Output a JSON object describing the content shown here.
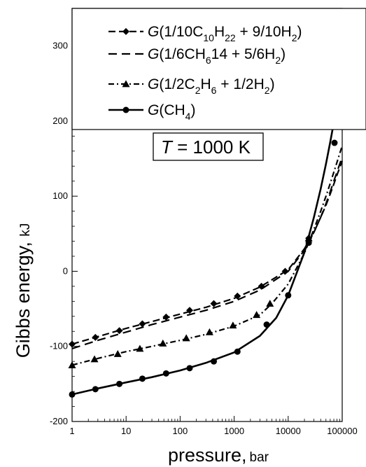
{
  "chart_data": {
    "type": "line",
    "xscale": "log",
    "xlim": [
      1,
      100000
    ],
    "ylim": [
      -200,
      350
    ],
    "grid": false,
    "x_ticks": [
      "1",
      "10",
      "100",
      "1000",
      "10000",
      "100000"
    ],
    "y_ticks": [
      "-200",
      "-100",
      "0",
      "100",
      "200",
      "300"
    ],
    "ylabel": "Gibbs energy,",
    "ylabel_unit": "kJ",
    "xlabel": "pressure,",
    "xlabel_unit": "bar",
    "annotation": {
      "var": "T",
      "rest": " = 1000 K"
    },
    "legend_position": "top-right",
    "series": [
      {
        "legend": {
          "pre": "G",
          "parts": [
            [
              "(1/10C",
              ""
            ],
            [
              "10",
              "sub"
            ],
            [
              "H",
              ""
            ],
            [
              "22",
              "sub"
            ],
            [
              " + 9/10H",
              ""
            ],
            [
              "2",
              "sub"
            ],
            [
              ")",
              ""
            ]
          ]
        },
        "color": "#000000",
        "dash": "10,5",
        "marker": "diamond",
        "x": [
          1,
          2.7,
          7.5,
          20,
          55,
          150,
          420,
          1150,
          3200,
          8800,
          24000
        ],
        "y": [
          -97,
          -88,
          -79,
          -70,
          -61,
          -52,
          -43,
          -33,
          -20,
          0,
          44
        ],
        "curve_x": [
          1,
          3,
          10,
          30,
          100,
          300,
          1000,
          3000,
          10000,
          20000,
          30000,
          40000,
          50000,
          60000,
          70000,
          80000,
          90000,
          100000
        ],
        "curve_y": [
          -97,
          -87,
          -76,
          -67,
          -57,
          -48,
          -36,
          -21,
          2,
          30,
          52,
          72,
          88,
          103,
          116,
          128,
          138,
          147
        ]
      },
      {
        "legend": {
          "pre": "G",
          "parts": [
            [
              "(1/6CH",
              ""
            ],
            [
              "6",
              "sub"
            ],
            [
              "14",
              ""
            ],
            [
              " + 5/6H",
              ""
            ],
            [
              "2",
              "sub"
            ],
            [
              ")",
              ""
            ]
          ]
        },
        "color": "#000000",
        "dash": "12,7",
        "marker": "none",
        "x": [],
        "y": [],
        "curve_x": [
          1,
          3,
          10,
          30,
          100,
          300,
          1000,
          3000,
          10000,
          20000,
          30000,
          40000,
          50000,
          60000,
          70000,
          80000,
          90000,
          100000
        ],
        "curve_y": [
          -103,
          -92,
          -81,
          -71,
          -61,
          -52,
          -40,
          -25,
          0,
          28,
          52,
          72,
          90,
          106,
          120,
          132,
          143,
          152
        ]
      },
      {
        "legend": {
          "pre": "G",
          "parts": [
            [
              "(1/2C",
              ""
            ],
            [
              "2",
              "sub"
            ],
            [
              "H",
              ""
            ],
            [
              "6",
              "sub"
            ],
            [
              " + 1/2H",
              ""
            ],
            [
              "2",
              "sub"
            ],
            [
              ")",
              ""
            ]
          ]
        },
        "color": "#000000",
        "dash": "8,4,2,4",
        "marker": "triangle",
        "x": [
          1,
          2.6,
          7,
          18,
          48,
          130,
          350,
          950,
          2600,
          4600,
          24000
        ],
        "y": [
          -125,
          -117,
          -110,
          -103,
          -96,
          -89,
          -81,
          -72,
          -58,
          -43,
          44
        ],
        "curve_x": [
          1,
          3,
          10,
          30,
          100,
          300,
          1000,
          3000,
          5000,
          10000,
          20000,
          30000,
          40000,
          50000,
          60000,
          70000,
          80000,
          90000,
          100000
        ],
        "curve_y": [
          -125,
          -116,
          -107,
          -100,
          -92,
          -84,
          -73,
          -58,
          -43,
          -17,
          24,
          56,
          80,
          100,
          117,
          132,
          145,
          157,
          167
        ]
      },
      {
        "legend": {
          "pre": "G",
          "parts": [
            [
              "(CH",
              ""
            ],
            [
              "4",
              "sub"
            ],
            [
              ")",
              ""
            ]
          ]
        },
        "color": "#000000",
        "dash": "",
        "marker": "circle",
        "x": [
          1,
          2.7,
          7.5,
          20,
          55,
          150,
          420,
          1150,
          4000,
          10000,
          24000,
          72000
        ],
        "y": [
          -164,
          -157,
          -150,
          -143,
          -136,
          -129,
          -120,
          -107,
          -71,
          -32,
          38,
          171
        ],
        "curve_x": [
          1,
          3,
          10,
          30,
          100,
          300,
          1000,
          3000,
          6000,
          10000,
          20000,
          30000,
          40000,
          50000,
          60000,
          70000,
          80000,
          90000,
          100000
        ],
        "curve_y": [
          -164,
          -156,
          -148,
          -141,
          -132,
          -122,
          -108,
          -86,
          -62,
          -32,
          25,
          72,
          110,
          143,
          172,
          198,
          220,
          240,
          258
        ]
      }
    ]
  }
}
